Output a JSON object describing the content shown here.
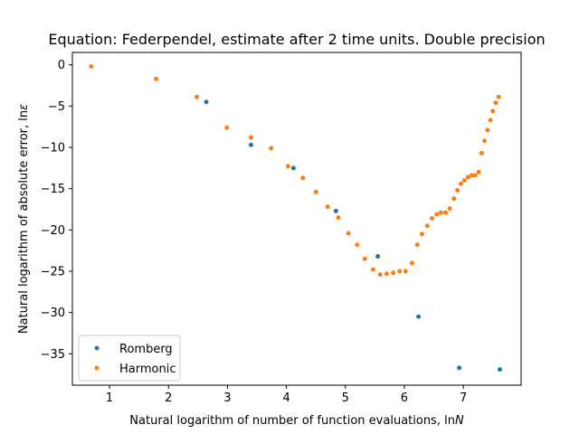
{
  "chart_data": {
    "type": "scatter",
    "title": "Equation: Federpendel, estimate after 2 time units. Double precision",
    "xlabel_prefix": "Natural logarithm of number of function evaluations, ln",
    "xlabel_var": "N",
    "ylabel_prefix": "Natural logarithm of absolute error, ln",
    "ylabel_var": "ε",
    "xlim": [
      0.37,
      7.98
    ],
    "ylim": [
      -38.8,
      1.5
    ],
    "xticks": [
      1,
      2,
      3,
      4,
      5,
      6,
      7
    ],
    "yticks": [
      0,
      -5,
      -10,
      -15,
      -20,
      -25,
      -30,
      -35
    ],
    "legend_position": "lower-left",
    "grid": false,
    "series": [
      {
        "name": "Romberg",
        "color": "#1f77b4",
        "points": [
          [
            2.64,
            -4.5
          ],
          [
            3.4,
            -9.7
          ],
          [
            4.12,
            -12.5
          ],
          [
            4.84,
            -17.7
          ],
          [
            5.55,
            -23.2
          ],
          [
            6.24,
            -30.5
          ],
          [
            6.93,
            -36.7
          ],
          [
            7.62,
            -36.9
          ]
        ]
      },
      {
        "name": "Harmonic",
        "color": "#ff7f0e",
        "points": [
          [
            0.69,
            -0.2
          ],
          [
            1.79,
            -1.7
          ],
          [
            2.48,
            -3.9
          ],
          [
            2.99,
            -7.6
          ],
          [
            3.4,
            -8.8
          ],
          [
            3.74,
            -10.1
          ],
          [
            4.03,
            -12.3
          ],
          [
            4.28,
            -13.7
          ],
          [
            4.5,
            -15.4
          ],
          [
            4.7,
            -17.2
          ],
          [
            4.88,
            -18.5
          ],
          [
            5.05,
            -20.4
          ],
          [
            5.2,
            -21.8
          ],
          [
            5.33,
            -23.5
          ],
          [
            5.47,
            -24.8
          ],
          [
            5.59,
            -25.4
          ],
          [
            5.7,
            -25.3
          ],
          [
            5.81,
            -25.2
          ],
          [
            5.92,
            -25.0
          ],
          [
            6.02,
            -25.0
          ],
          [
            6.13,
            -24.0
          ],
          [
            6.22,
            -21.8
          ],
          [
            6.3,
            -20.5
          ],
          [
            6.39,
            -19.5
          ],
          [
            6.47,
            -18.6
          ],
          [
            6.55,
            -18.1
          ],
          [
            6.62,
            -17.9
          ],
          [
            6.7,
            -17.9
          ],
          [
            6.77,
            -17.4
          ],
          [
            6.84,
            -16.2
          ],
          [
            6.9,
            -15.2
          ],
          [
            6.96,
            -14.4
          ],
          [
            7.02,
            -14.0
          ],
          [
            7.08,
            -13.6
          ],
          [
            7.14,
            -13.4
          ],
          [
            7.2,
            -13.4
          ],
          [
            7.26,
            -13.0
          ],
          [
            7.31,
            -10.7
          ],
          [
            7.36,
            -9.2
          ],
          [
            7.41,
            -7.9
          ],
          [
            7.46,
            -6.7
          ],
          [
            7.5,
            -5.6
          ],
          [
            7.55,
            -4.6
          ],
          [
            7.6,
            -3.9
          ]
        ]
      }
    ]
  }
}
